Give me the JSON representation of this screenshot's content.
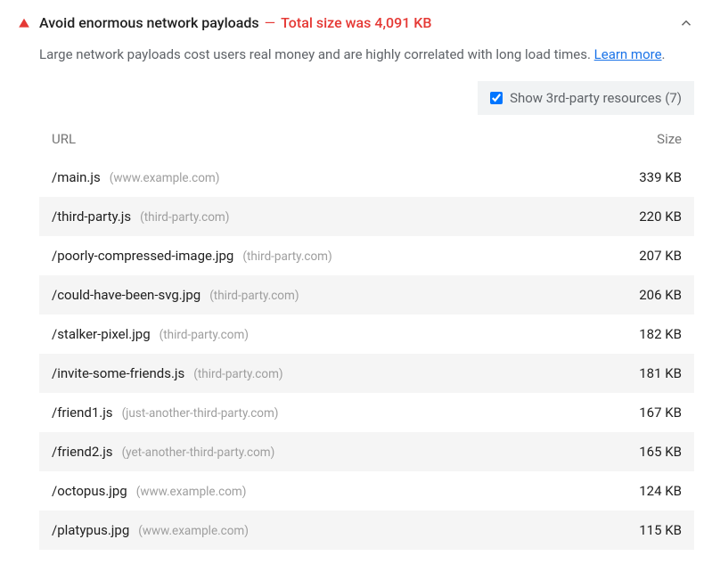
{
  "header": {
    "title": "Avoid enormous network payloads",
    "summary": "Total size was 4,091 KB",
    "icon_color": "#e53935"
  },
  "description": {
    "text_before": "Large network payloads cost users real money and are highly correlated with long load times. ",
    "link_text": "Learn more",
    "text_after": "."
  },
  "toggle": {
    "label": "Show 3rd-party resources (7)",
    "checked": true
  },
  "table": {
    "columns": {
      "url": "URL",
      "size": "Size"
    },
    "rows": [
      {
        "path": "/main.js",
        "domain": "(www.example.com)",
        "size": "339 KB"
      },
      {
        "path": "/third-party.js",
        "domain": "(third-party.com)",
        "size": "220 KB"
      },
      {
        "path": "/poorly-compressed-image.jpg",
        "domain": "(third-party.com)",
        "size": "207 KB"
      },
      {
        "path": "/could-have-been-svg.jpg",
        "domain": "(third-party.com)",
        "size": "206 KB"
      },
      {
        "path": "/stalker-pixel.jpg",
        "domain": "(third-party.com)",
        "size": "182 KB"
      },
      {
        "path": "/invite-some-friends.js",
        "domain": "(third-party.com)",
        "size": "181 KB"
      },
      {
        "path": "/friend1.js",
        "domain": "(just-another-third-party.com)",
        "size": "167 KB"
      },
      {
        "path": "/friend2.js",
        "domain": "(yet-another-third-party.com)",
        "size": "165 KB"
      },
      {
        "path": "/octopus.jpg",
        "domain": "(www.example.com)",
        "size": "124 KB"
      },
      {
        "path": "/platypus.jpg",
        "domain": "(www.example.com)",
        "size": "115 KB"
      }
    ]
  },
  "colors": {
    "error": "#e53935",
    "text_primary": "#212121",
    "text_secondary": "#5f6368",
    "text_muted": "#9e9e9e",
    "row_alt": "#f5f5f5",
    "link": "#1a73e8",
    "toggle_bg": "#f1f3f4"
  }
}
